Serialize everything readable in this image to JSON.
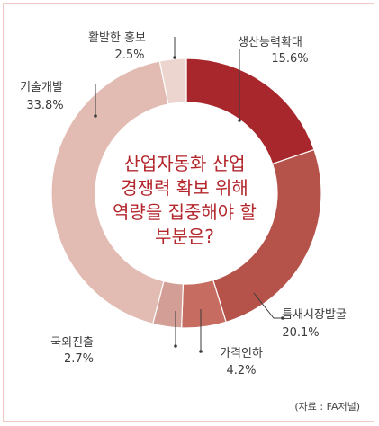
{
  "chart_data": {
    "type": "pie",
    "donut": true,
    "title_lines": [
      "산업자동화 산업",
      "경쟁력 확보 위해",
      "역량을 집중해야 할",
      "부분은?"
    ],
    "categories": [
      "생산능력확대",
      "틈새시장발굴",
      "가격인하",
      "국외진출",
      "기술개발",
      "활발한 홍보"
    ],
    "values": [
      15.6,
      20.1,
      4.2,
      2.7,
      33.8,
      2.5
    ],
    "value_labels": [
      "15.6%",
      "20.1%",
      "4.2%",
      "2.7%",
      "33.8%",
      "2.5%"
    ],
    "colors": [
      "#a8272c",
      "#b5524a",
      "#c76c60",
      "#d39e95",
      "#e2bcb3",
      "#ecd5cf"
    ],
    "source": "(자료 : FA저널)"
  }
}
